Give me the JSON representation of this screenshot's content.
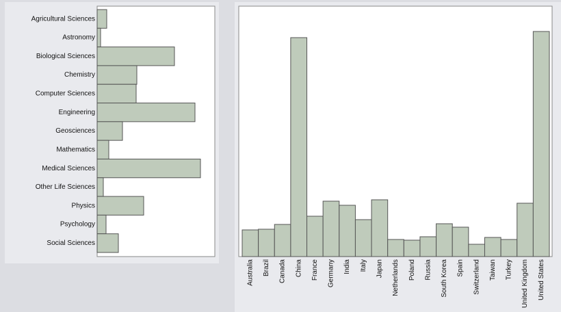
{
  "chart_data": [
    {
      "type": "bar",
      "horizontal": true,
      "color": "#bfcbbb",
      "categories": [
        "Agricultural Sciences",
        "Astronomy",
        "Biological Sciences",
        "Chemistry",
        "Computer Sciences",
        "Engineering",
        "Geosciences",
        "Mathematics",
        "Medical Sciences",
        "Other Life Sciences",
        "Physics",
        "Psychology",
        "Social Sciences"
      ],
      "values": [
        14,
        5,
        113,
        58,
        57,
        143,
        37,
        17,
        151,
        9,
        68,
        13,
        31
      ]
    },
    {
      "type": "bar",
      "horizontal": false,
      "color": "#bfcbbb",
      "categories": [
        "Australia",
        "Brazil",
        "Canada",
        "China",
        "France",
        "Germany",
        "India",
        "Italy",
        "Japan",
        "Netherlands",
        "Poland",
        "Russia",
        "South Korea",
        "Spain",
        "Switzerland",
        "Taiwan",
        "Turkey",
        "United Kingdom",
        "United States"
      ],
      "values": [
        39,
        40,
        47,
        320,
        59,
        81,
        75,
        54,
        83,
        25,
        24,
        29,
        48,
        43,
        18,
        28,
        25,
        78,
        329
      ]
    }
  ]
}
